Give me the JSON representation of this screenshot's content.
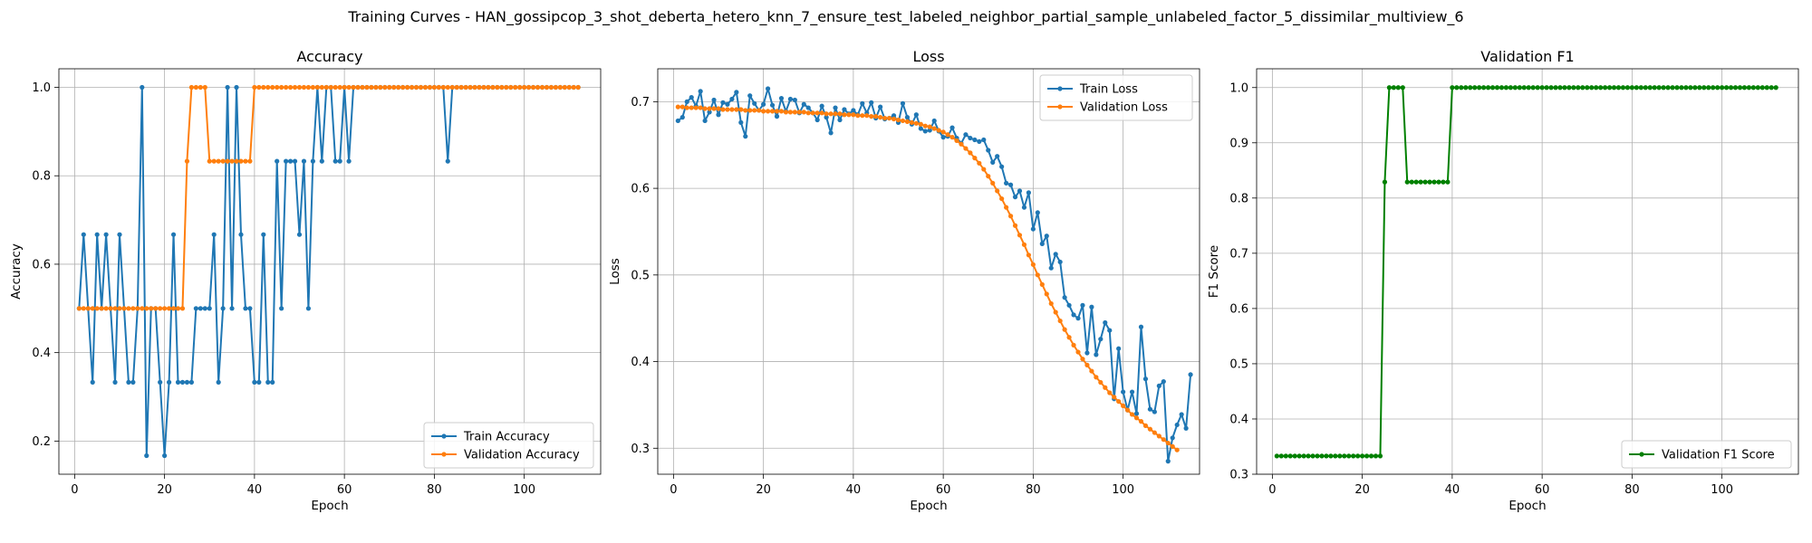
{
  "suptitle": "Training Curves - HAN_gossipcop_3_shot_deberta_hetero_knn_7_ensure_test_labeled_neighbor_partial_sample_unlabeled_factor_5_dissimilar_multiview_6",
  "chart_data": [
    {
      "type": "line",
      "title": "Accuracy",
      "xlabel": "Epoch",
      "ylabel": "Accuracy",
      "xlim": [
        -3.5,
        117
      ],
      "ylim": [
        0.125,
        1.042
      ],
      "xticks": [
        0,
        20,
        40,
        60,
        80,
        100
      ],
      "yticks": [
        0.2,
        0.4,
        0.6,
        0.8,
        1.0
      ],
      "ytick_labels": [
        "0.2",
        "0.4",
        "0.6",
        "0.8",
        "1.0"
      ],
      "grid": true,
      "legend_position": "lower-right",
      "series": [
        {
          "name": "Train Accuracy",
          "color": "#1f77b4",
          "x_start": 1,
          "values": [
            0.5,
            0.667,
            0.5,
            0.333,
            0.667,
            0.5,
            0.667,
            0.5,
            0.333,
            0.667,
            0.5,
            0.333,
            0.333,
            0.5,
            1.0,
            0.167,
            0.5,
            0.5,
            0.333,
            0.167,
            0.333,
            0.667,
            0.333,
            0.333,
            0.333,
            0.333,
            0.5,
            0.5,
            0.5,
            0.5,
            0.667,
            0.333,
            0.5,
            1.0,
            0.5,
            1.0,
            0.667,
            0.5,
            0.5,
            0.333,
            0.333,
            0.667,
            0.333,
            0.333,
            0.833,
            0.5,
            0.833,
            0.833,
            0.833,
            0.667,
            0.833,
            0.5,
            0.833,
            1.0,
            0.833,
            1.0,
            1.0,
            0.833,
            0.833,
            1.0,
            0.833,
            1.0,
            1.0,
            1.0,
            1.0,
            1.0,
            1.0,
            1.0,
            1.0,
            1.0,
            1.0,
            1.0,
            1.0,
            1.0,
            1.0,
            1.0,
            1.0,
            1.0,
            1.0,
            1.0,
            1.0,
            1.0,
            0.833,
            1.0,
            1.0,
            1.0,
            1.0,
            1.0,
            1.0,
            1.0,
            1.0,
            1.0,
            1.0,
            1.0,
            1.0,
            1.0,
            1.0,
            1.0,
            1.0,
            1.0,
            1.0,
            1.0,
            1.0,
            1.0,
            1.0,
            1.0,
            1.0,
            1.0,
            1.0,
            1.0,
            1.0,
            1.0
          ]
        },
        {
          "name": "Validation Accuracy",
          "color": "#ff7f0e",
          "x_start": 1,
          "values": [
            0.5,
            0.5,
            0.5,
            0.5,
            0.5,
            0.5,
            0.5,
            0.5,
            0.5,
            0.5,
            0.5,
            0.5,
            0.5,
            0.5,
            0.5,
            0.5,
            0.5,
            0.5,
            0.5,
            0.5,
            0.5,
            0.5,
            0.5,
            0.5,
            0.833,
            1.0,
            1.0,
            1.0,
            1.0,
            0.833,
            0.833,
            0.833,
            0.833,
            0.833,
            0.833,
            0.833,
            0.833,
            0.833,
            0.833,
            1.0,
            1.0,
            1.0,
            1.0,
            1.0,
            1.0,
            1.0,
            1.0,
            1.0,
            1.0,
            1.0,
            1.0,
            1.0,
            1.0,
            1.0,
            1.0,
            1.0,
            1.0,
            1.0,
            1.0,
            1.0,
            1.0,
            1.0,
            1.0,
            1.0,
            1.0,
            1.0,
            1.0,
            1.0,
            1.0,
            1.0,
            1.0,
            1.0,
            1.0,
            1.0,
            1.0,
            1.0,
            1.0,
            1.0,
            1.0,
            1.0,
            1.0,
            1.0,
            1.0,
            1.0,
            1.0,
            1.0,
            1.0,
            1.0,
            1.0,
            1.0,
            1.0,
            1.0,
            1.0,
            1.0,
            1.0,
            1.0,
            1.0,
            1.0,
            1.0,
            1.0,
            1.0,
            1.0,
            1.0,
            1.0,
            1.0,
            1.0,
            1.0,
            1.0,
            1.0,
            1.0,
            1.0,
            1.0
          ]
        }
      ]
    },
    {
      "type": "line",
      "title": "Loss",
      "xlabel": "Epoch",
      "ylabel": "Loss",
      "xlim": [
        -3.5,
        117
      ],
      "ylim": [
        0.27,
        0.738
      ],
      "xticks": [
        0,
        20,
        40,
        60,
        80,
        100
      ],
      "yticks": [
        0.3,
        0.4,
        0.5,
        0.6,
        0.7
      ],
      "ytick_labels": [
        "0.3",
        "0.4",
        "0.5",
        "0.6",
        "0.7"
      ],
      "grid": true,
      "legend_position": "upper-right",
      "series": [
        {
          "name": "Train Loss",
          "color": "#1f77b4",
          "x_start": 1,
          "values": [
            0.678,
            0.682,
            0.7,
            0.705,
            0.695,
            0.712,
            0.678,
            0.688,
            0.702,
            0.685,
            0.699,
            0.697,
            0.703,
            0.711,
            0.676,
            0.66,
            0.707,
            0.698,
            0.69,
            0.697,
            0.715,
            0.696,
            0.683,
            0.704,
            0.689,
            0.703,
            0.702,
            0.687,
            0.697,
            0.693,
            0.687,
            0.679,
            0.695,
            0.682,
            0.664,
            0.693,
            0.679,
            0.691,
            0.686,
            0.69,
            0.685,
            0.698,
            0.687,
            0.699,
            0.681,
            0.694,
            0.68,
            0.681,
            0.684,
            0.676,
            0.698,
            0.682,
            0.674,
            0.685,
            0.669,
            0.666,
            0.667,
            0.678,
            0.666,
            0.659,
            0.66,
            0.67,
            0.658,
            0.652,
            0.662,
            0.658,
            0.656,
            0.654,
            0.656,
            0.644,
            0.63,
            0.637,
            0.625,
            0.606,
            0.604,
            0.59,
            0.597,
            0.578,
            0.595,
            0.553,
            0.572,
            0.536,
            0.545,
            0.508,
            0.524,
            0.515,
            0.474,
            0.465,
            0.454,
            0.45,
            0.465,
            0.41,
            0.463,
            0.408,
            0.426,
            0.445,
            0.436,
            0.357,
            0.415,
            0.365,
            0.344,
            0.365,
            0.34,
            0.44,
            0.38,
            0.345,
            0.342,
            0.372,
            0.377,
            0.285,
            0.312,
            0.327,
            0.339,
            0.323,
            0.385
          ]
        },
        {
          "name": "Validation Loss",
          "color": "#ff7f0e",
          "x_start": 1,
          "values": [
            0.694,
            0.694,
            0.693,
            0.693,
            0.693,
            0.693,
            0.692,
            0.692,
            0.692,
            0.692,
            0.691,
            0.691,
            0.691,
            0.691,
            0.691,
            0.69,
            0.69,
            0.69,
            0.69,
            0.689,
            0.689,
            0.689,
            0.689,
            0.689,
            0.688,
            0.688,
            0.688,
            0.688,
            0.688,
            0.687,
            0.687,
            0.687,
            0.687,
            0.686,
            0.686,
            0.686,
            0.686,
            0.685,
            0.685,
            0.685,
            0.684,
            0.684,
            0.684,
            0.683,
            0.683,
            0.682,
            0.681,
            0.681,
            0.68,
            0.679,
            0.678,
            0.677,
            0.676,
            0.675,
            0.674,
            0.672,
            0.671,
            0.669,
            0.667,
            0.665,
            0.662,
            0.659,
            0.655,
            0.651,
            0.646,
            0.641,
            0.635,
            0.629,
            0.622,
            0.614,
            0.606,
            0.597,
            0.588,
            0.578,
            0.568,
            0.557,
            0.546,
            0.535,
            0.523,
            0.512,
            0.5,
            0.489,
            0.478,
            0.467,
            0.457,
            0.447,
            0.437,
            0.428,
            0.419,
            0.411,
            0.403,
            0.396,
            0.389,
            0.382,
            0.376,
            0.37,
            0.364,
            0.359,
            0.354,
            0.349,
            0.344,
            0.339,
            0.335,
            0.331,
            0.326,
            0.322,
            0.318,
            0.314,
            0.31,
            0.306,
            0.302,
            0.298
          ]
        }
      ]
    },
    {
      "type": "line",
      "title": "Validation F1",
      "xlabel": "Epoch",
      "ylabel": "F1 Score",
      "xlim": [
        -3.5,
        117
      ],
      "ylim": [
        0.3,
        1.034
      ],
      "xticks": [
        0,
        20,
        40,
        60,
        80,
        100
      ],
      "yticks": [
        0.3,
        0.4,
        0.5,
        0.6,
        0.7,
        0.8,
        0.9,
        1.0
      ],
      "ytick_labels": [
        "0.3",
        "0.4",
        "0.5",
        "0.6",
        "0.7",
        "0.8",
        "0.9",
        "1.0"
      ],
      "grid": true,
      "legend_position": "lower-right",
      "series": [
        {
          "name": "Validation F1 Score",
          "color": "#008000",
          "x_start": 1,
          "values": [
            0.333,
            0.333,
            0.333,
            0.333,
            0.333,
            0.333,
            0.333,
            0.333,
            0.333,
            0.333,
            0.333,
            0.333,
            0.333,
            0.333,
            0.333,
            0.333,
            0.333,
            0.333,
            0.333,
            0.333,
            0.333,
            0.333,
            0.333,
            0.333,
            0.829,
            1.0,
            1.0,
            1.0,
            1.0,
            0.829,
            0.829,
            0.829,
            0.829,
            0.829,
            0.829,
            0.829,
            0.829,
            0.829,
            0.829,
            1.0,
            1.0,
            1.0,
            1.0,
            1.0,
            1.0,
            1.0,
            1.0,
            1.0,
            1.0,
            1.0,
            1.0,
            1.0,
            1.0,
            1.0,
            1.0,
            1.0,
            1.0,
            1.0,
            1.0,
            1.0,
            1.0,
            1.0,
            1.0,
            1.0,
            1.0,
            1.0,
            1.0,
            1.0,
            1.0,
            1.0,
            1.0,
            1.0,
            1.0,
            1.0,
            1.0,
            1.0,
            1.0,
            1.0,
            1.0,
            1.0,
            1.0,
            1.0,
            1.0,
            1.0,
            1.0,
            1.0,
            1.0,
            1.0,
            1.0,
            1.0,
            1.0,
            1.0,
            1.0,
            1.0,
            1.0,
            1.0,
            1.0,
            1.0,
            1.0,
            1.0,
            1.0,
            1.0,
            1.0,
            1.0,
            1.0,
            1.0,
            1.0,
            1.0,
            1.0,
            1.0,
            1.0,
            1.0
          ]
        }
      ]
    }
  ]
}
